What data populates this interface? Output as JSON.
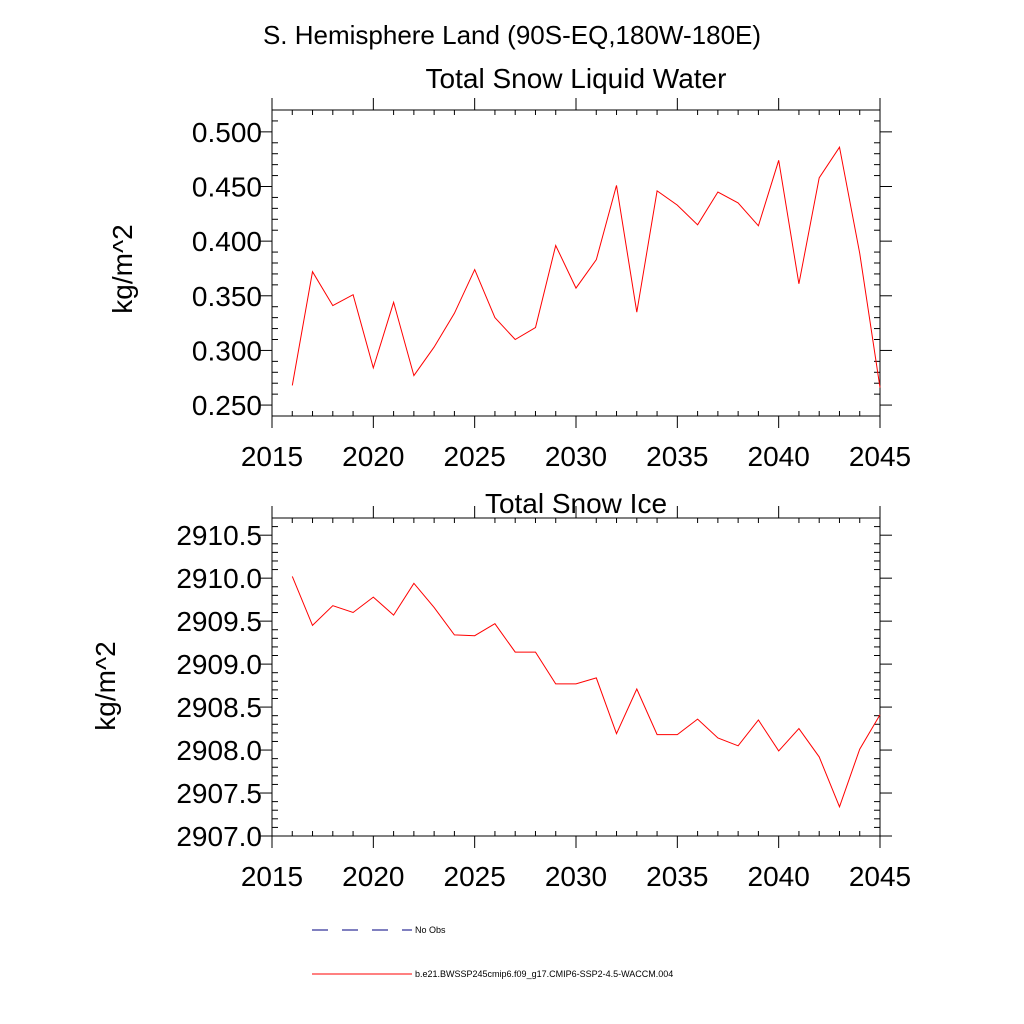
{
  "suptitle": "S. Hemisphere Land (90S-EQ,180W-180E)",
  "chart_data": [
    {
      "type": "line",
      "title": "Total Snow Liquid Water",
      "ylabel": "kg/m^2",
      "xlabel": "",
      "xlim": [
        2015,
        2045
      ],
      "ylim": [
        0.24,
        0.52
      ],
      "xticks": [
        2015,
        2020,
        2025,
        2030,
        2035,
        2040,
        2045
      ],
      "xtick_labels": [
        "2015",
        "2020",
        "2025",
        "2030",
        "2035",
        "2040",
        "2045"
      ],
      "yticks": [
        0.25,
        0.3,
        0.35,
        0.4,
        0.45,
        0.5
      ],
      "ytick_labels": [
        "0.250",
        "0.300",
        "0.350",
        "0.400",
        "0.450",
        "0.500"
      ],
      "grid": false,
      "series": [
        {
          "color": "#ff0000",
          "x": [
            2016,
            2017,
            2018,
            2019,
            2020,
            2021,
            2022,
            2023,
            2024,
            2025,
            2026,
            2027,
            2028,
            2029,
            2030,
            2031,
            2032,
            2033,
            2034,
            2035,
            2036,
            2037,
            2038,
            2039,
            2040,
            2041,
            2042,
            2043,
            2044,
            2045
          ],
          "values": [
            0.268,
            0.372,
            0.341,
            0.351,
            0.284,
            0.344,
            0.277,
            0.303,
            0.334,
            0.374,
            0.33,
            0.31,
            0.321,
            0.396,
            0.357,
            0.383,
            0.451,
            0.335,
            0.446,
            0.433,
            0.415,
            0.445,
            0.435,
            0.414,
            0.474,
            0.361,
            0.458,
            0.486,
            0.389,
            0.266
          ]
        }
      ]
    },
    {
      "type": "line",
      "title": "Total Snow Ice",
      "ylabel": "kg/m^2",
      "xlabel": "",
      "xlim": [
        2015,
        2045
      ],
      "ylim": [
        2907.0,
        2910.7
      ],
      "xticks": [
        2015,
        2020,
        2025,
        2030,
        2035,
        2040,
        2045
      ],
      "xtick_labels": [
        "2015",
        "2020",
        "2025",
        "2030",
        "2035",
        "2040",
        "2045"
      ],
      "yticks": [
        2907.0,
        2907.5,
        2908.0,
        2908.5,
        2909.0,
        2909.5,
        2910.0,
        2910.5
      ],
      "ytick_labels": [
        "2907.0",
        "2907.5",
        "2908.0",
        "2908.5",
        "2909.0",
        "2909.5",
        "2910.0",
        "2910.5"
      ],
      "grid": false,
      "series": [
        {
          "color": "#ff0000",
          "x": [
            2016,
            2017,
            2018,
            2019,
            2020,
            2021,
            2022,
            2023,
            2024,
            2025,
            2026,
            2027,
            2028,
            2029,
            2030,
            2031,
            2032,
            2033,
            2034,
            2035,
            2036,
            2037,
            2038,
            2039,
            2040,
            2041,
            2042,
            2043,
            2044,
            2045
          ],
          "values": [
            2910.02,
            2909.45,
            2909.68,
            2909.6,
            2909.78,
            2909.57,
            2909.94,
            2909.66,
            2909.34,
            2909.33,
            2909.47,
            2909.14,
            2909.14,
            2908.77,
            2908.77,
            2908.84,
            2908.19,
            2908.71,
            2908.18,
            2908.18,
            2908.36,
            2908.14,
            2908.05,
            2908.35,
            2907.99,
            2908.25,
            2907.92,
            2907.34,
            2908.01,
            2908.41
          ]
        }
      ]
    }
  ],
  "legend": {
    "placement": "bottom-left",
    "entries": [
      {
        "label": "No Obs",
        "style": "dashed",
        "color": "#000080"
      },
      {
        "label": "b.e21.BWSSP245cmip6.f09_g17.CMIP6-SSP2-4.5-WACCM.004",
        "style": "solid",
        "color": "#ff0000"
      }
    ]
  }
}
